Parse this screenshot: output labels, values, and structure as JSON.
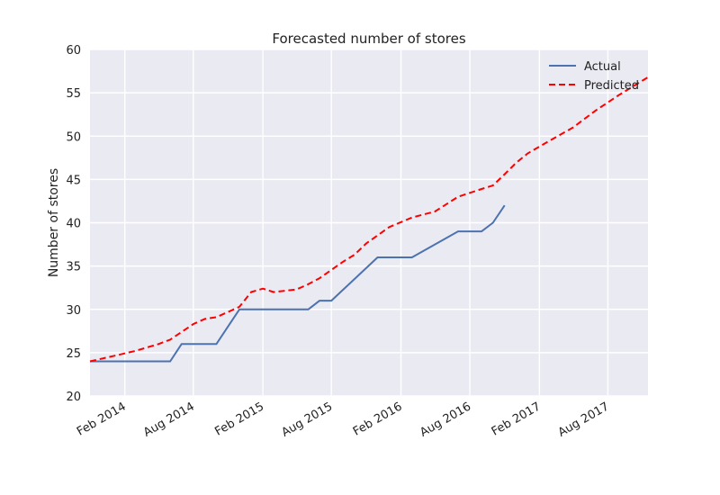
{
  "chart_data": {
    "type": "line",
    "title": "Forecasted number of stores",
    "xlabel": "",
    "ylabel": "Number of stores",
    "ylim": [
      20,
      60
    ],
    "xlim": [
      "2013-11-01",
      "2017-11-15"
    ],
    "yticks": [
      20,
      25,
      30,
      35,
      40,
      45,
      50,
      55,
      60
    ],
    "xticks": [
      {
        "date": "2014-02-01",
        "label": "Feb 2014"
      },
      {
        "date": "2014-08-01",
        "label": "Aug 2014"
      },
      {
        "date": "2015-02-01",
        "label": "Feb 2015"
      },
      {
        "date": "2015-08-01",
        "label": "Aug 2015"
      },
      {
        "date": "2016-02-01",
        "label": "Feb 2016"
      },
      {
        "date": "2016-08-01",
        "label": "Aug 2016"
      },
      {
        "date": "2017-02-01",
        "label": "Feb 2017"
      },
      {
        "date": "2017-08-01",
        "label": "Aug 2017"
      }
    ],
    "grid": true,
    "legend_position": "top-right",
    "background": "#eaeaf2",
    "series": [
      {
        "name": "Actual",
        "color": "#4c72b0",
        "style": "solid",
        "points": [
          {
            "x": "2013-11-01",
            "y": 24
          },
          {
            "x": "2014-06-01",
            "y": 24
          },
          {
            "x": "2014-07-01",
            "y": 26
          },
          {
            "x": "2014-10-01",
            "y": 26
          },
          {
            "x": "2014-12-01",
            "y": 30
          },
          {
            "x": "2015-06-01",
            "y": 30
          },
          {
            "x": "2015-07-01",
            "y": 31
          },
          {
            "x": "2015-08-01",
            "y": 31
          },
          {
            "x": "2015-12-01",
            "y": 36
          },
          {
            "x": "2016-03-01",
            "y": 36
          },
          {
            "x": "2016-07-01",
            "y": 39
          },
          {
            "x": "2016-09-01",
            "y": 39
          },
          {
            "x": "2016-10-01",
            "y": 40
          },
          {
            "x": "2016-11-01",
            "y": 42
          }
        ]
      },
      {
        "name": "Predicted",
        "color": "#ff0000",
        "style": "dashed",
        "points": [
          {
            "x": "2013-11-01",
            "y": 24.0
          },
          {
            "x": "2014-01-01",
            "y": 24.6
          },
          {
            "x": "2014-03-01",
            "y": 25.2
          },
          {
            "x": "2014-05-01",
            "y": 26.0
          },
          {
            "x": "2014-06-01",
            "y": 26.5
          },
          {
            "x": "2014-08-01",
            "y": 28.3
          },
          {
            "x": "2014-09-01",
            "y": 28.9
          },
          {
            "x": "2014-10-01",
            "y": 29.1
          },
          {
            "x": "2014-11-01",
            "y": 29.7
          },
          {
            "x": "2014-12-01",
            "y": 30.3
          },
          {
            "x": "2015-01-01",
            "y": 32.0
          },
          {
            "x": "2015-02-01",
            "y": 32.4
          },
          {
            "x": "2015-03-01",
            "y": 32.0
          },
          {
            "x": "2015-05-01",
            "y": 32.3
          },
          {
            "x": "2015-06-01",
            "y": 32.9
          },
          {
            "x": "2015-07-01",
            "y": 33.6
          },
          {
            "x": "2015-09-01",
            "y": 35.5
          },
          {
            "x": "2015-10-01",
            "y": 36.3
          },
          {
            "x": "2015-11-01",
            "y": 37.6
          },
          {
            "x": "2016-01-01",
            "y": 39.5
          },
          {
            "x": "2016-03-01",
            "y": 40.6
          },
          {
            "x": "2016-05-01",
            "y": 41.3
          },
          {
            "x": "2016-07-01",
            "y": 43.0
          },
          {
            "x": "2016-09-01",
            "y": 43.9
          },
          {
            "x": "2016-10-01",
            "y": 44.3
          },
          {
            "x": "2016-11-01",
            "y": 45.6
          },
          {
            "x": "2016-12-01",
            "y": 46.9
          },
          {
            "x": "2017-01-01",
            "y": 48.0
          },
          {
            "x": "2017-03-01",
            "y": 49.5
          },
          {
            "x": "2017-05-01",
            "y": 51.0
          },
          {
            "x": "2017-07-01",
            "y": 53.0
          },
          {
            "x": "2017-09-01",
            "y": 54.8
          },
          {
            "x": "2017-11-15",
            "y": 56.8
          }
        ]
      }
    ]
  }
}
